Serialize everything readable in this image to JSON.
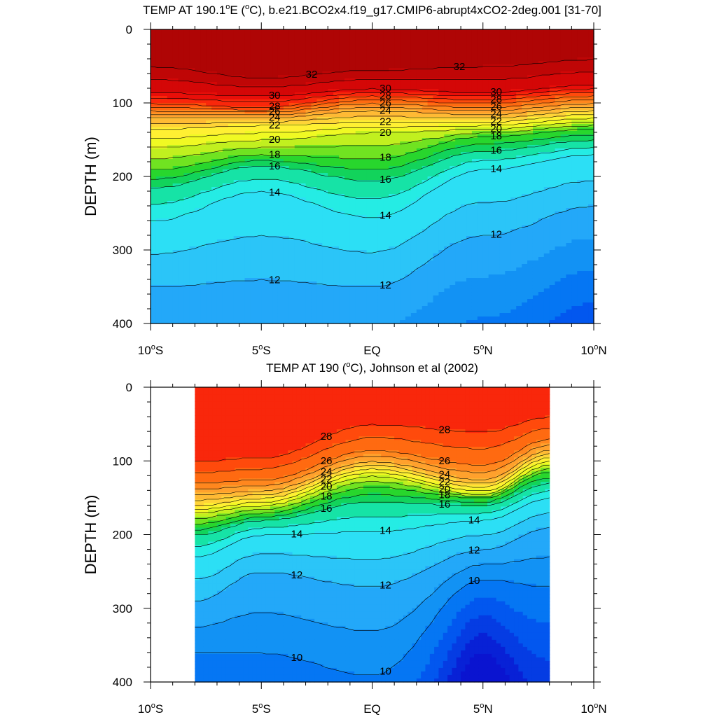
{
  "chart_data": [
    {
      "type": "heatmap",
      "title": "TEMP AT 190.1°E (°C), b.e21.BCO2x4.f19_g17.CMIP6-abrupt4xCO2-2deg.001 [31-70]",
      "title_parts": [
        "TEMP AT 190.1",
        "o",
        "E (",
        "o",
        "C), b.e21.BCO2x4.f19_g17.CMIP6-abrupt4xCO2-2deg.001 [31-70]"
      ],
      "ylabel": "DEPTH (m)",
      "xlabel": "",
      "x_ticks": [
        "10°S",
        "5°S",
        "EQ",
        "5°N",
        "10°N"
      ],
      "x_tick_parts": [
        [
          "10",
          "o",
          "S"
        ],
        [
          "5",
          "o",
          "S"
        ],
        [
          "EQ",
          "",
          ""
        ],
        [
          "5",
          "o",
          "N"
        ],
        [
          "10",
          "o",
          "N"
        ]
      ],
      "y_ticks": [
        "0",
        "100",
        "200",
        "300",
        "400"
      ],
      "xlim": [
        -10,
        10
      ],
      "ylim": [
        0,
        400
      ],
      "y_reversed": true,
      "contour_interval": 1,
      "contour_labels": [
        "32",
        "32",
        "30",
        "30",
        "30",
        "28",
        "28",
        "28",
        "26",
        "26",
        "26",
        "24",
        "24",
        "24",
        "22",
        "22",
        "22",
        "20",
        "20",
        "20",
        "18",
        "18",
        "18",
        "16",
        "16",
        "16",
        "14",
        "14",
        "14",
        "12",
        "12",
        "12"
      ],
      "isotherm_depth_m": {
        "lat": [
          -10,
          -5,
          0,
          5,
          10
        ],
        "32": [
          50,
          65,
          55,
          50,
          40
        ],
        "30": [
          85,
          90,
          80,
          85,
          75
        ],
        "28": [
          100,
          105,
          90,
          95,
          85
        ],
        "26": [
          110,
          112,
          100,
          105,
          95
        ],
        "24": [
          120,
          120,
          110,
          115,
          105
        ],
        "22": [
          135,
          130,
          125,
          125,
          115
        ],
        "20": [
          160,
          150,
          140,
          135,
          125
        ],
        "18": [
          190,
          170,
          175,
          145,
          135
        ],
        "16": [
          215,
          185,
          205,
          165,
          150
        ],
        "14": [
          260,
          220,
          255,
          190,
          170
        ],
        "12": [
          350,
          340,
          350,
          280,
          240
        ]
      }
    },
    {
      "type": "heatmap",
      "title": "TEMP AT 190 (°C), Johnson et al (2002)",
      "title_parts": [
        "TEMP AT 190 (",
        "o",
        "C), Johnson et al (2002)"
      ],
      "ylabel": "DEPTH (m)",
      "xlabel": "",
      "x_ticks": [
        "10°S",
        "5°S",
        "EQ",
        "5°N",
        "10°N"
      ],
      "x_tick_parts": [
        [
          "10",
          "o",
          "S"
        ],
        [
          "5",
          "o",
          "S"
        ],
        [
          "EQ",
          "",
          ""
        ],
        [
          "5",
          "o",
          "N"
        ],
        [
          "10",
          "o",
          "N"
        ]
      ],
      "y_ticks": [
        "0",
        "100",
        "200",
        "300",
        "400"
      ],
      "xlim": [
        -10,
        10
      ],
      "ylim": [
        0,
        400
      ],
      "y_reversed": true,
      "data_lat_range": [
        -8,
        8
      ],
      "contour_interval": 1,
      "contour_labels": [
        "28",
        "28",
        "26",
        "26",
        "24",
        "24",
        "22",
        "22",
        "20",
        "20",
        "18",
        "18",
        "16",
        "16",
        "14",
        "14",
        "14",
        "12",
        "12",
        "12",
        "10",
        "10",
        "10"
      ],
      "isotherm_depth_m": {
        "lat": [
          -8,
          -5,
          0,
          5,
          8
        ],
        "28": [
          100,
          95,
          50,
          60,
          40
        ],
        "26": [
          130,
          125,
          85,
          105,
          70
        ],
        "24": [
          145,
          140,
          100,
          125,
          85
        ],
        "22": [
          160,
          150,
          110,
          135,
          95
        ],
        "20": [
          170,
          160,
          120,
          145,
          105
        ],
        "18": [
          185,
          170,
          135,
          150,
          115
        ],
        "16": [
          200,
          180,
          155,
          160,
          130
        ],
        "14": [
          230,
          200,
          195,
          180,
          150
        ],
        "12": [
          290,
          250,
          270,
          220,
          190
        ],
        "10": [
          360,
          360,
          390,
          260,
          270
        ]
      }
    }
  ]
}
